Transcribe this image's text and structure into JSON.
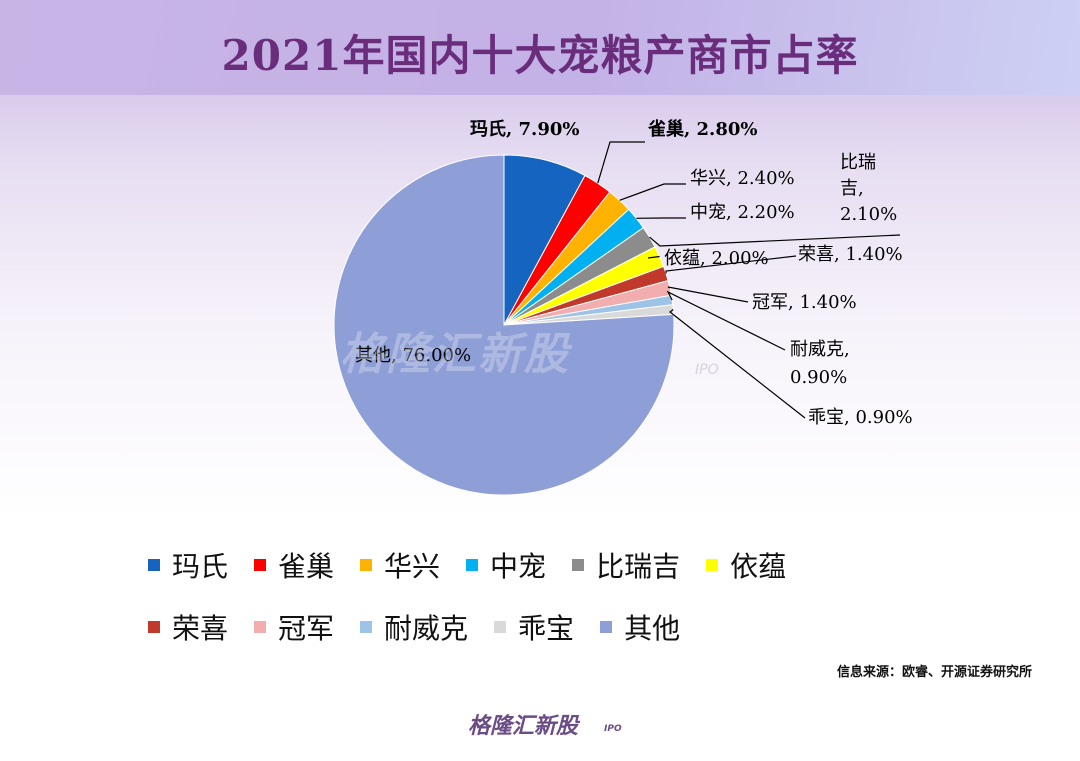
{
  "title": "2021年国内十大宠粮产商市占率",
  "chart_data": {
    "type": "pie",
    "title": "2021年国内十大宠粮产商市占率",
    "slices": [
      {
        "name": "玛氏",
        "value": 7.9,
        "label": "玛氏, 7.90%",
        "color": "#1565c0",
        "bold": true
      },
      {
        "name": "雀巢",
        "value": 2.8,
        "label": "雀巢, 2.80%",
        "color": "#ff0000",
        "bold": true
      },
      {
        "name": "华兴",
        "value": 2.4,
        "label": "华兴, 2.40%",
        "color": "#ffb300",
        "bold": false
      },
      {
        "name": "中宠",
        "value": 2.2,
        "label": "中宠, 2.20%",
        "color": "#00b0f0",
        "bold": false
      },
      {
        "name": "比瑞吉",
        "value": 2.1,
        "label_lines": [
          "比瑞",
          "吉,",
          "2.10%"
        ],
        "color": "#8c8c8c",
        "bold": false
      },
      {
        "name": "依蕴",
        "value": 2.0,
        "label": "依蕴, 2.00%",
        "color": "#ffff00",
        "bold": false
      },
      {
        "name": "荣喜",
        "value": 1.4,
        "label": "荣喜, 1.40%",
        "color": "#c0392b",
        "bold": false
      },
      {
        "name": "冠军",
        "value": 1.4,
        "label": "冠军, 1.40%",
        "color": "#f2aeae",
        "bold": false
      },
      {
        "name": "耐威克",
        "value": 0.9,
        "label_lines": [
          "耐威克,",
          "0.90%"
        ],
        "color": "#9dc3e6",
        "bold": false
      },
      {
        "name": "乖宝",
        "value": 0.9,
        "label": "乖宝, 0.90%",
        "color": "#d9d9d9",
        "bold": false
      },
      {
        "name": "其他",
        "value": 76.0,
        "label": "其他, 76.00%",
        "color": "#8e9ed6",
        "bold": false
      }
    ]
  },
  "legend": {
    "rows": [
      [
        {
          "name": "玛氏",
          "color": "#1565c0"
        },
        {
          "name": "雀巢",
          "color": "#ff0000"
        },
        {
          "name": "华兴",
          "color": "#ffb300"
        },
        {
          "name": "中宠",
          "color": "#00b0f0"
        },
        {
          "name": "比瑞吉",
          "color": "#8c8c8c"
        },
        {
          "name": "依蕴",
          "color": "#ffff00"
        }
      ],
      [
        {
          "name": "荣喜",
          "color": "#c0392b"
        },
        {
          "name": "冠军",
          "color": "#f2aeae"
        },
        {
          "name": "耐威克",
          "color": "#9dc3e6"
        },
        {
          "name": "乖宝",
          "color": "#d9d9d9"
        },
        {
          "name": "其他",
          "color": "#8e9ed6"
        }
      ]
    ]
  },
  "source": "信息来源：欧睿、开源证券研究所",
  "watermark": {
    "text": "格隆汇新股",
    "sub": "IPO"
  }
}
